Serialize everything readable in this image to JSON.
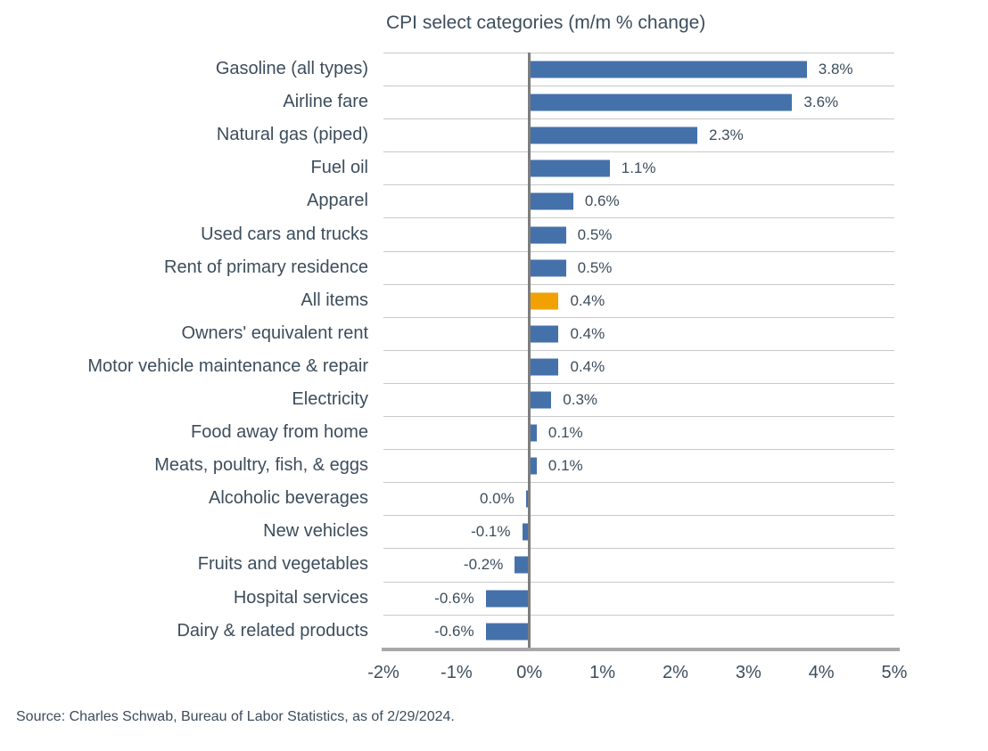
{
  "chart": {
    "title": "CPI select categories (m/m % change)",
    "bar_color": "#4571ab",
    "highlight_color": "#f2a104",
    "text_color": "#3d4d5c",
    "gridline_color": "#c9c9c9",
    "zero_axis_color": "#7d7d7d",
    "baseline_color": "#a8a8a8"
  },
  "chart_data": {
    "type": "bar",
    "orientation": "horizontal",
    "title": "CPI select categories (m/m % change)",
    "categories": [
      "Gasoline (all types)",
      "Airline fare",
      "Natural gas (piped)",
      "Fuel oil",
      "Apparel",
      "Used cars and trucks",
      "Rent of primary residence",
      "All items",
      "Owners' equivalent rent",
      "Motor vehicle maintenance & repair",
      "Electricity",
      "Food away from home",
      "Meats, poultry, fish, & eggs",
      "Alcoholic beverages",
      "New vehicles",
      "Fruits and vegetables",
      "Hospital services",
      "Dairy & related products"
    ],
    "values": [
      3.8,
      3.6,
      2.3,
      1.1,
      0.6,
      0.5,
      0.5,
      0.4,
      0.4,
      0.4,
      0.3,
      0.1,
      0.1,
      0.0,
      -0.1,
      -0.2,
      -0.6,
      -0.6
    ],
    "value_labels": [
      "3.8%",
      "3.6%",
      "2.3%",
      "1.1%",
      "0.6%",
      "0.5%",
      "0.5%",
      "0.4%",
      "0.4%",
      "0.4%",
      "0.3%",
      "0.1%",
      "0.1%",
      "0.0%",
      "-0.1%",
      "-0.2%",
      "-0.6%",
      "-0.6%"
    ],
    "highlighted_category": "All items",
    "xlim": [
      -2,
      5
    ],
    "x_tick_values": [
      -2,
      -1,
      0,
      1,
      2,
      3,
      4,
      5
    ],
    "x_tick_labels": [
      "-2%",
      "-1%",
      "0%",
      "1%",
      "2%",
      "3%",
      "4%",
      "5%"
    ],
    "grid": true,
    "legend": false
  },
  "source": "Source: Charles Schwab, Bureau of Labor Statistics, as of 2/29/2024."
}
